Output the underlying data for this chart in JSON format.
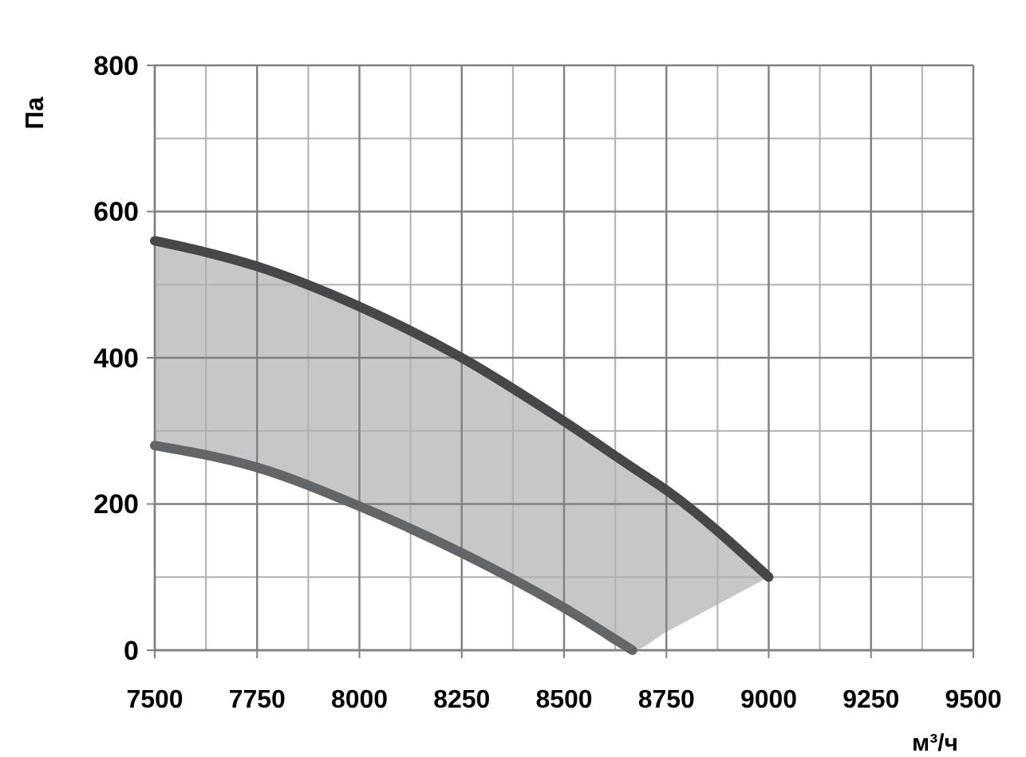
{
  "chart_data": {
    "type": "line",
    "xlabel": "м³/ч",
    "ylabel": "Па",
    "x": [
      7500,
      7750,
      8000,
      8250,
      8500,
      8667,
      8750,
      9000
    ],
    "series": [
      {
        "color": "#45474b",
        "values": [
          560,
          525,
          470,
          400,
          313,
          250,
          219,
          100
        ],
        "lower": [
          280,
          250,
          197,
          133,
          58,
          0,
          25,
          100
        ],
        "upper": [
          560,
          525,
          470,
          400,
          313,
          250,
          219,
          100
        ]
      },
      {
        "color": "#636669",
        "values": [
          280,
          250,
          197,
          133,
          58,
          0,
          null,
          null
        ]
      }
    ],
    "xlim": [
      7500,
      9500
    ],
    "ylim": [
      0,
      800
    ],
    "xticks": [
      7500,
      7750,
      8000,
      8250,
      8500,
      8750,
      9000,
      9250,
      9500
    ],
    "yticks": [
      0,
      200,
      400,
      600,
      800
    ],
    "grid": true,
    "marker": "none",
    "line_style": "solid"
  }
}
